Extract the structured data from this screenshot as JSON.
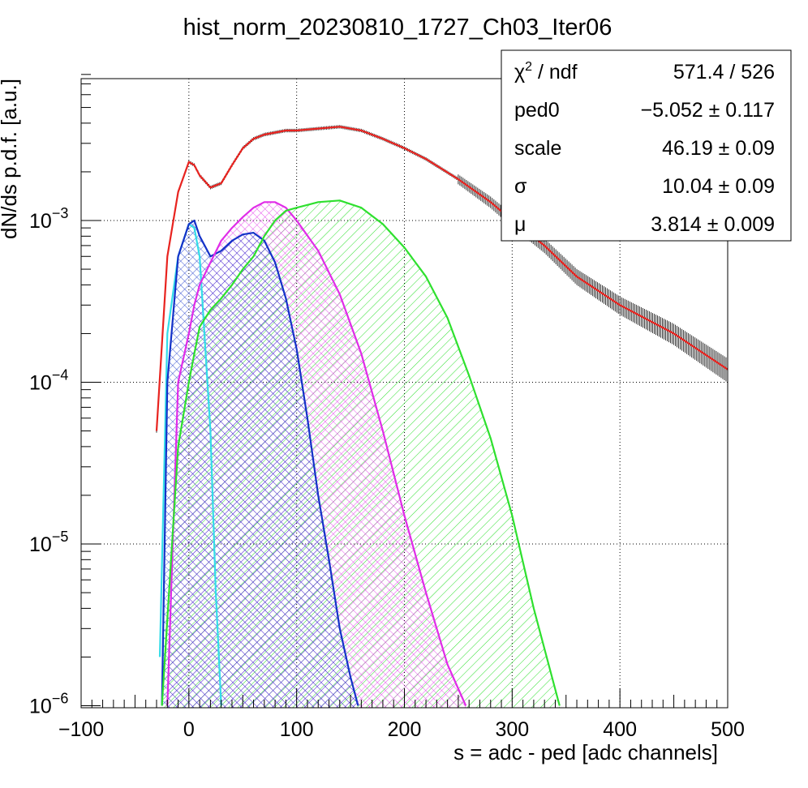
{
  "chart_data": {
    "type": "line",
    "title": "hist_norm_20230810_1727_Ch03_Iter06",
    "xlabel": "s = adc - ped [adc channels]",
    "ylabel": "dN/ds p.d.f. [a.u.]",
    "xlim": [
      -100,
      500
    ],
    "ylim": [
      1e-06,
      0.008
    ],
    "yscale": "log",
    "grid": true,
    "x_ticks": [
      {
        "value": -100,
        "label": "−100"
      },
      {
        "value": 0,
        "label": "0"
      },
      {
        "value": 100,
        "label": "100"
      },
      {
        "value": 200,
        "label": "200"
      },
      {
        "value": 300,
        "label": "300"
      },
      {
        "value": 400,
        "label": "400"
      },
      {
        "value": 500,
        "label": "500"
      }
    ],
    "y_ticks": [
      {
        "value": 1e-06,
        "mantissa": "10",
        "exponent": "−6"
      },
      {
        "value": 1e-05,
        "mantissa": "10",
        "exponent": "−5"
      },
      {
        "value": 0.0001,
        "mantissa": "10",
        "exponent": "−4"
      },
      {
        "value": 0.001,
        "mantissa": "10",
        "exponent": "−3"
      }
    ],
    "stats": [
      {
        "name": "χ",
        "sup": "2",
        "tail": " / ndf",
        "value": "571.4 / 526"
      },
      {
        "name": "ped0",
        "value": "−5.052 ± 0.117"
      },
      {
        "name": "scale",
        "value": "46.19 ± 0.09"
      },
      {
        "name": "σ",
        "value": "10.04 ± 0.09"
      },
      {
        "name": "μ",
        "value": "3.814 ± 0.009"
      }
    ],
    "series": [
      {
        "role": "data",
        "color": "#000000",
        "x": [
          -30,
          -20,
          -10,
          0,
          5,
          10,
          20,
          30,
          40,
          50,
          60,
          70,
          80,
          90,
          100,
          120,
          140,
          160,
          180,
          200,
          220,
          250,
          280,
          300,
          330,
          360,
          400,
          450,
          500
        ],
        "y": [
          5e-05,
          0.0006,
          0.0015,
          0.0023,
          0.0022,
          0.0019,
          0.0016,
          0.0017,
          0.0022,
          0.0028,
          0.0032,
          0.0034,
          0.0035,
          0.0036,
          0.0036,
          0.0037,
          0.0038,
          0.0036,
          0.0032,
          0.0028,
          0.0024,
          0.0018,
          0.0013,
          0.001,
          0.0007,
          0.00045,
          0.0003,
          0.0002,
          0.00012
        ]
      },
      {
        "role": "total-fit",
        "color": "#e8231f",
        "x": [
          -30,
          -20,
          -10,
          0,
          5,
          10,
          20,
          30,
          40,
          50,
          60,
          70,
          80,
          90,
          100,
          120,
          140,
          160,
          180,
          200,
          220,
          250,
          280,
          300,
          330,
          360,
          400,
          450,
          500
        ],
        "y": [
          5e-05,
          0.0006,
          0.0015,
          0.0023,
          0.0022,
          0.0019,
          0.0016,
          0.0017,
          0.0022,
          0.0028,
          0.0032,
          0.0034,
          0.0035,
          0.0036,
          0.0036,
          0.0037,
          0.0038,
          0.0036,
          0.0032,
          0.0028,
          0.0024,
          0.0018,
          0.0013,
          0.001,
          0.0007,
          0.00045,
          0.0003,
          0.0002,
          0.00012
        ]
      },
      {
        "role": "component",
        "color": "#33dde8",
        "fill": false,
        "x": [
          -27,
          -20,
          -10,
          0,
          5,
          10,
          20,
          25,
          30
        ],
        "y": [
          2e-06,
          0.0002,
          0.0006,
          0.00095,
          0.0009,
          0.0006,
          5e-05,
          5e-06,
          1e-06
        ]
      },
      {
        "role": "component",
        "color": "#1432c8",
        "fill": "crosshatch",
        "x": [
          -25,
          -20,
          -10,
          0,
          5,
          10,
          20,
          30,
          40,
          50,
          60,
          70,
          80,
          90,
          100,
          110,
          120,
          130,
          140,
          150,
          157
        ],
        "y": [
          1e-06,
          0.0001,
          0.0006,
          0.00095,
          0.001,
          0.0008,
          0.0006,
          0.00065,
          0.00075,
          0.00082,
          0.00084,
          0.00075,
          0.00055,
          0.00033,
          0.00016,
          6e-05,
          2e-05,
          8e-06,
          3e-06,
          1.5e-06,
          1e-06
        ]
      },
      {
        "role": "component",
        "color": "#e02ce8",
        "fill": "crosshatch",
        "x": [
          -20,
          -10,
          0,
          5,
          10,
          20,
          30,
          40,
          50,
          60,
          70,
          80,
          90,
          100,
          120,
          140,
          160,
          180,
          200,
          220,
          240,
          257
        ],
        "y": [
          1e-06,
          0.0001,
          0.0002,
          0.0003,
          0.0004,
          0.00055,
          0.00075,
          0.0009,
          0.00105,
          0.0012,
          0.0013,
          0.0013,
          0.0012,
          0.001,
          0.00065,
          0.00035,
          0.00015,
          5e-05,
          1.5e-05,
          5e-06,
          1.8e-06,
          1e-06
        ]
      },
      {
        "role": "component",
        "color": "#2ee02e",
        "fill": "hatch",
        "x": [
          -25,
          -10,
          0,
          5,
          10,
          20,
          30,
          40,
          50,
          60,
          70,
          80,
          90,
          100,
          120,
          140,
          160,
          180,
          200,
          220,
          240,
          260,
          280,
          300,
          320,
          344
        ],
        "y": [
          1e-06,
          4e-05,
          0.0001,
          0.00015,
          0.00022,
          0.00028,
          0.00033,
          0.0004,
          0.0005,
          0.0006,
          0.0008,
          0.001,
          0.00115,
          0.0012,
          0.0013,
          0.00133,
          0.0012,
          0.00095,
          0.00068,
          0.00045,
          0.00025,
          0.00011,
          4.5e-05,
          1.5e-05,
          4e-06,
          1e-06
        ]
      }
    ]
  }
}
